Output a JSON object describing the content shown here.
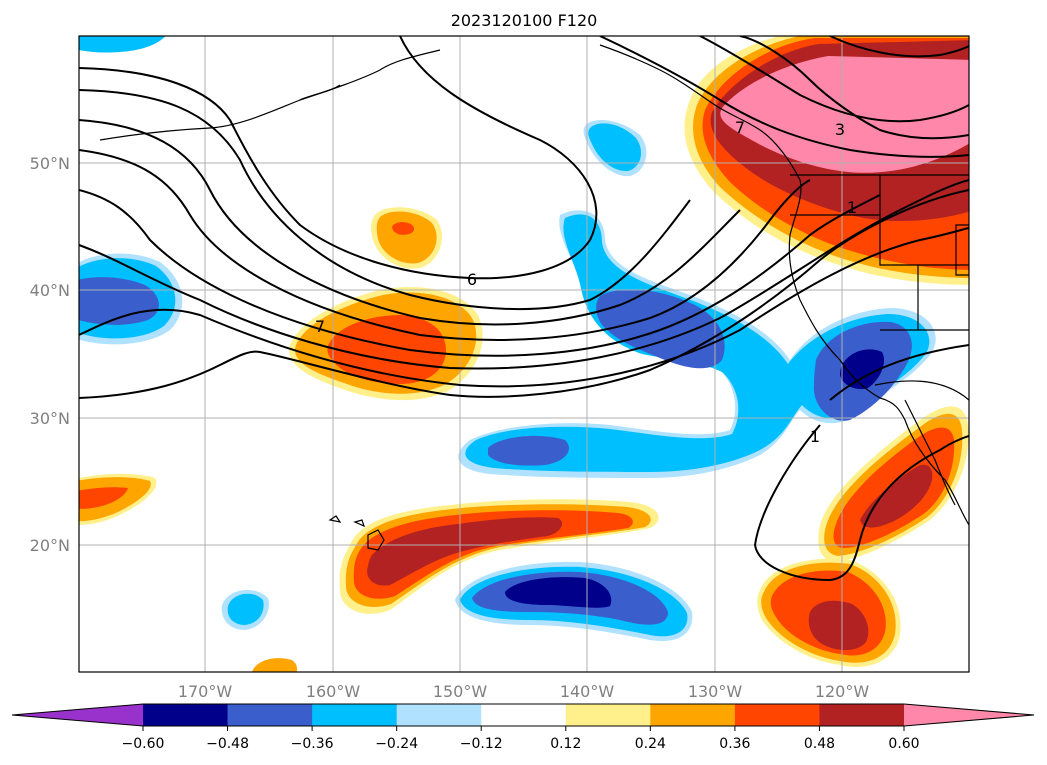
{
  "title": "2023120100 F120",
  "map": {
    "lon_range": [
      -180,
      -110
    ],
    "lat_range": [
      10,
      60
    ],
    "grid": true,
    "lon_labels": [
      "170°W",
      "160°W",
      "150°W",
      "140°W",
      "130°W",
      "120°W"
    ],
    "lat_labels": [
      "50°N",
      "40°N",
      "30°N",
      "20°N"
    ],
    "contour_labels": [
      "6",
      "7",
      "3",
      "1",
      "1",
      "7"
    ]
  },
  "colorbar": {
    "ticks": [
      "−0.60",
      "−0.48",
      "−0.36",
      "−0.24",
      "−0.12",
      "0.12",
      "0.24",
      "0.36",
      "0.48",
      "0.60"
    ],
    "colors": [
      "#9932cc",
      "#00008b",
      "#3a5fcd",
      "#00bfff",
      "#b0e2ff",
      "#ffffff",
      "#fff08c",
      "#ffa500",
      "#ff4500",
      "#b22222",
      "#ff88aa"
    ]
  }
}
